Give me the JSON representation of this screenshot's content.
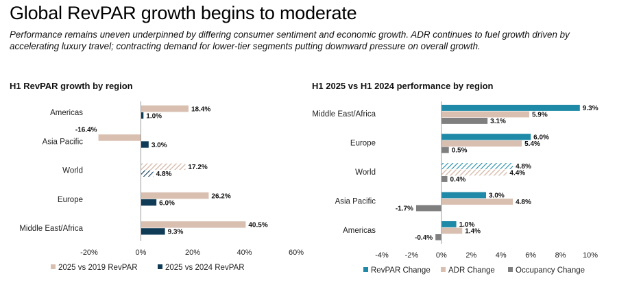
{
  "title": "Global RevPAR growth begins to moderate",
  "subtitle": "Performance remains uneven underpinned by differing consumer sentiment and economic growth. ADR continues to fuel growth driven by accelerating luxury travel; contracting demand for lower-tier segments putting downward pressure on overall growth.",
  "colors": {
    "revpar_2019": "#d8bfb0",
    "revpar_2024": "#0f3b57",
    "revpar_change": "#1f8aa8",
    "adr_change": "#d8bfb0",
    "occupancy_change": "#7f7f7f"
  },
  "chart_data": [
    {
      "type": "bar",
      "orientation": "horizontal",
      "title": "H1 RevPAR growth by region",
      "categories": [
        "Americas",
        "Asia Pacific",
        "World",
        "Europe",
        "Middle East/Africa"
      ],
      "series": [
        {
          "name": "2025 vs 2019 RevPAR",
          "values": [
            18.4,
            -16.4,
            17.2,
            26.2,
            40.5
          ],
          "labels": [
            "18.4%",
            "-16.4%",
            "17.2%",
            "26.2%",
            "40.5%"
          ]
        },
        {
          "name": "2025 vs 2024 RevPAR",
          "values": [
            1.0,
            3.0,
            4.8,
            6.0,
            9.3
          ],
          "labels": [
            "1.0%",
            "3.0%",
            "4.8%",
            "6.0%",
            "9.3%"
          ]
        }
      ],
      "hatched_category": "World",
      "xlim": [
        -20,
        60
      ],
      "xticks": [
        -20,
        0,
        20,
        40,
        60
      ],
      "xtick_labels": [
        "-20%",
        "0%",
        "20%",
        "40%",
        "60%"
      ],
      "legend": "bottom"
    },
    {
      "type": "bar",
      "orientation": "horizontal",
      "title": "H1 2025 vs H1 2024 performance by region",
      "categories": [
        "Middle East/Africa",
        "Europe",
        "World",
        "Asia Pacific",
        "Americas"
      ],
      "series": [
        {
          "name": "RevPAR Change",
          "values": [
            9.3,
            6.0,
            4.8,
            3.0,
            1.0
          ],
          "labels": [
            "9.3%",
            "6.0%",
            "4.8%",
            "3.0%",
            "1.0%"
          ]
        },
        {
          "name": "ADR Change",
          "values": [
            5.9,
            5.4,
            4.4,
            4.8,
            1.4
          ],
          "labels": [
            "5.9%",
            "5.4%",
            "4.4%",
            "4.8%",
            "1.4%"
          ]
        },
        {
          "name": "Occupancy Change",
          "values": [
            3.1,
            0.5,
            0.4,
            -1.7,
            -0.4
          ],
          "labels": [
            "3.1%",
            "0.5%",
            "0.4%",
            "-1.7%",
            "-0.4%"
          ]
        }
      ],
      "hatched_category": "World",
      "xlim": [
        -4,
        10
      ],
      "xticks": [
        -4,
        -2,
        0,
        2,
        4,
        6,
        8,
        10
      ],
      "xtick_labels": [
        "-4%",
        "-2%",
        "0%",
        "2%",
        "4%",
        "6%",
        "8%",
        "10%"
      ],
      "legend": "bottom"
    }
  ]
}
